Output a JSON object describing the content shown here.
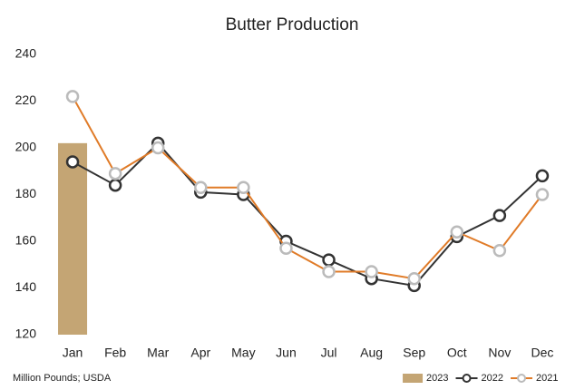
{
  "chart_data": {
    "type": "line",
    "title": "Butter Production",
    "note": "Million Pounds; USDA",
    "categories": [
      "Jan",
      "Feb",
      "Mar",
      "Apr",
      "May",
      "Jun",
      "Jul",
      "Aug",
      "Sep",
      "Oct",
      "Nov",
      "Dec"
    ],
    "series": [
      {
        "name": "2023",
        "type": "bar",
        "color": "#c4a574",
        "values": [
          202,
          null,
          null,
          null,
          null,
          null,
          null,
          null,
          null,
          null,
          null,
          null
        ]
      },
      {
        "name": "2022",
        "type": "line",
        "color": "#333333",
        "marker_color": "#333333",
        "values": [
          194,
          184,
          202,
          181,
          180,
          160,
          152,
          144,
          141,
          162,
          171,
          188
        ]
      },
      {
        "name": "2021",
        "type": "line",
        "color": "#e07b28",
        "marker_color": "#bbbbbb",
        "values": [
          222,
          189,
          200,
          183,
          183,
          157,
          147,
          147,
          144,
          164,
          156,
          180
        ]
      }
    ],
    "ylim": [
      120,
      240
    ],
    "yticks": [
      120,
      140,
      160,
      180,
      200,
      220,
      240
    ],
    "grid": false,
    "legend": "bottom-right"
  }
}
